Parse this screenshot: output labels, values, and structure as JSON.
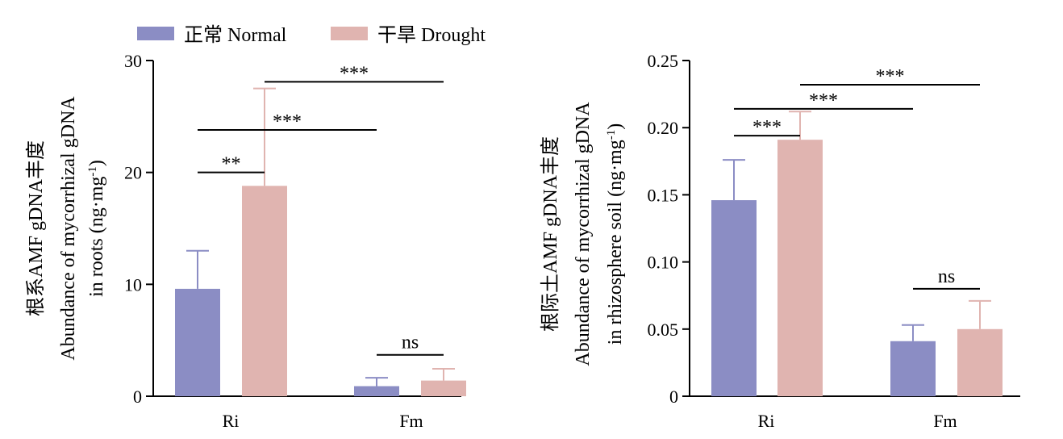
{
  "legend": [
    {
      "name": "正常 Normal",
      "color": "#8b8dc4"
    },
    {
      "name": "干旱 Drought",
      "color": "#e0b4b0"
    }
  ],
  "chart_data": [
    {
      "type": "bar",
      "categories": [
        "Ri",
        "Fm"
      ],
      "series": [
        {
          "name": "正常 Normal",
          "values": [
            9.6,
            0.9
          ],
          "errors": [
            3.4,
            0.75
          ]
        },
        {
          "name": "干旱 Drought",
          "values": [
            18.8,
            1.4
          ],
          "errors": [
            8.7,
            1.05
          ]
        }
      ],
      "ylim": [
        0,
        30
      ],
      "yticks": [
        "0",
        "10",
        "20",
        "30"
      ],
      "ylabel_lines": [
        "根系AMF gDNA丰度",
        "Abundance of mycorrhizal gDNA",
        "in roots (ng·mg",
        "-1",
        ")"
      ],
      "significance": [
        {
          "label": "**",
          "from": "Ri|Normal",
          "to": "Ri|Drought",
          "y": 20
        },
        {
          "label": "***",
          "from": "Ri|Normal",
          "to": "Fm|Normal",
          "y": 23.8
        },
        {
          "label": "***",
          "from": "Ri|Drought",
          "to": "Fm|Drought",
          "y": 28.1
        },
        {
          "label": "ns",
          "from": "Fm|Normal",
          "to": "Fm|Drought",
          "y": 3.7
        }
      ]
    },
    {
      "type": "bar",
      "categories": [
        "Ri",
        "Fm"
      ],
      "series": [
        {
          "name": "正常 Normal",
          "values": [
            0.146,
            0.041
          ],
          "errors": [
            0.03,
            0.012
          ]
        },
        {
          "name": "干旱 Drought",
          "values": [
            0.191,
            0.05
          ],
          "errors": [
            0.021,
            0.021
          ]
        }
      ],
      "ylim": [
        0,
        0.25
      ],
      "yticks": [
        "0",
        "0.05",
        "0.10",
        "0.15",
        "0.20",
        "0.25"
      ],
      "ylabel_lines": [
        "根际土AMF gDNA丰度",
        "Abundance of mycorrhizal gDNA",
        "in rhizosphere soil (ng·mg",
        "-1",
        ")"
      ],
      "significance": [
        {
          "label": "***",
          "from": "Ri|Normal",
          "to": "Ri|Drought",
          "y": 0.194
        },
        {
          "label": "***",
          "from": "Ri|Normal",
          "to": "Fm|Normal",
          "y": 0.214
        },
        {
          "label": "***",
          "from": "Ri|Drought",
          "to": "Fm|Drought",
          "y": 0.232
        },
        {
          "label": "ns",
          "from": "Fm|Normal",
          "to": "Fm|Drought",
          "y": 0.08
        }
      ]
    }
  ]
}
